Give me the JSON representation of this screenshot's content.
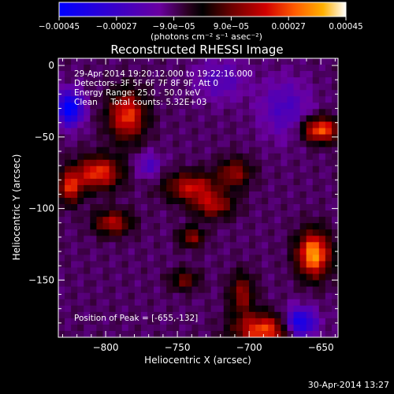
{
  "chart_data": {
    "type": "heatmap",
    "title": "Reconstructed RHESSI Image",
    "xlabel": "Heliocentric X (arcsec)",
    "ylabel": "Heliocentric Y (arcsec)",
    "xlim": [
      -833,
      -638
    ],
    "ylim": [
      -190,
      5
    ],
    "x_ticks": [
      -800,
      -750,
      -700,
      -650
    ],
    "y_ticks": [
      0,
      -50,
      -100,
      -150
    ],
    "x_tick_labels": [
      "−800",
      "−750",
      "−700",
      "−650"
    ],
    "y_tick_labels": [
      "0",
      "−50",
      "−100",
      "−150"
    ],
    "colorbar": {
      "range": [
        -0.00045,
        0.00045
      ],
      "tick_values": [
        -0.00045,
        -0.00027,
        -9e-05,
        9e-05,
        0.00027,
        0.00045
      ],
      "tick_labels": [
        "−0.00045",
        "−0.00027",
        "−9.0e−05",
        "9.0e−05",
        "0.00027",
        "0.00045"
      ],
      "unit_label": "(photons cm⁻² s⁻¹ asec⁻²)",
      "colormap_stops": [
        "#0000ff",
        "#3a00c8",
        "#6a00a0",
        "#2a0020",
        "#000000",
        "#6a0000",
        "#d00000",
        "#ff5a00",
        "#ffb000",
        "#ffffff"
      ]
    },
    "annotations": [
      "29-Apr-2014 19:20:12.000 to 19:22:16.000",
      "Detectors: 3F 5F 6F 7F 8F 9F, Att 0",
      "Energy Range: 25.0 - 50.0 keV",
      "Clean     Total counts: 5.32E+03"
    ],
    "peak_label": "Position of Peak = [-655,-132]",
    "peak_position": [
      -655,
      -132
    ],
    "sources": [
      {
        "x": -785,
        "y": -35,
        "peak": 0.00034,
        "sx": 9,
        "sy": 12
      },
      {
        "x": -805,
        "y": -75,
        "peak": 0.00034,
        "sx": 11,
        "sy": 8
      },
      {
        "x": -825,
        "y": -85,
        "peak": 0.0003,
        "sx": 6,
        "sy": 8
      },
      {
        "x": -795,
        "y": -110,
        "peak": 0.00026,
        "sx": 9,
        "sy": 6
      },
      {
        "x": -740,
        "y": -85,
        "peak": 0.00028,
        "sx": 13,
        "sy": 7
      },
      {
        "x": -725,
        "y": -98,
        "peak": 0.00024,
        "sx": 10,
        "sy": 6
      },
      {
        "x": -710,
        "y": -75,
        "peak": 0.00022,
        "sx": 8,
        "sy": 7
      },
      {
        "x": -740,
        "y": -120,
        "peak": 0.00022,
        "sx": 6,
        "sy": 5
      },
      {
        "x": -655,
        "y": -132,
        "peak": 0.00045,
        "sx": 8,
        "sy": 11
      },
      {
        "x": -650,
        "y": -45,
        "peak": 0.00038,
        "sx": 9,
        "sy": 6
      },
      {
        "x": -690,
        "y": -185,
        "peak": 0.00036,
        "sx": 14,
        "sy": 8
      },
      {
        "x": -745,
        "y": -150,
        "peak": 0.00018,
        "sx": 7,
        "sy": 5
      },
      {
        "x": -705,
        "y": -160,
        "peak": 0.00022,
        "sx": 6,
        "sy": 10
      },
      {
        "x": -720,
        "y": -10,
        "peak": -0.00012,
        "sx": 12,
        "sy": 10
      },
      {
        "x": -675,
        "y": -30,
        "peak": -0.00014,
        "sx": 12,
        "sy": 14
      },
      {
        "x": -825,
        "y": -30,
        "peak": -0.0004,
        "sx": 6,
        "sy": 8
      },
      {
        "x": -665,
        "y": -180,
        "peak": -0.00035,
        "sx": 8,
        "sy": 7
      },
      {
        "x": -770,
        "y": -70,
        "peak": -0.00014,
        "sx": 6,
        "sy": 6
      }
    ]
  },
  "footer_timestamp": "30-Apr-2014 13:27"
}
